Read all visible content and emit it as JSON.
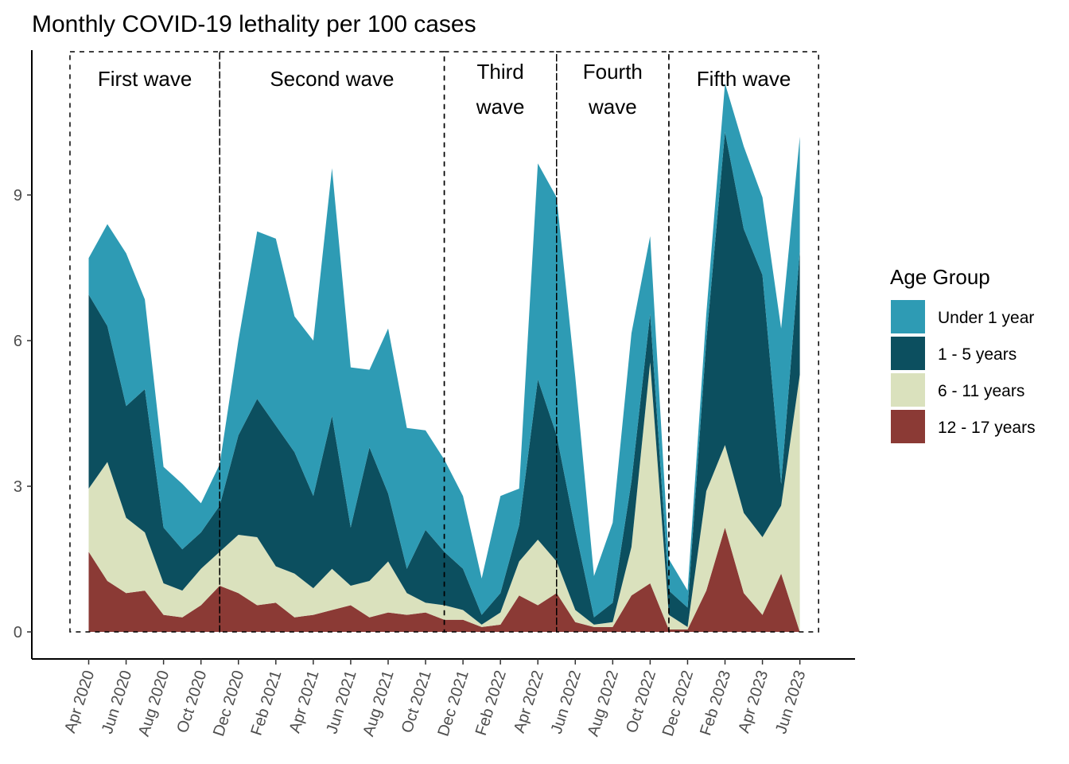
{
  "chart_data": {
    "type": "area",
    "stacked": true,
    "title": "Monthly COVID-19 lethality per 100 cases",
    "xlabel": "",
    "ylabel": "",
    "ylim": [
      -0.55,
      12.0
    ],
    "yticks": [
      0,
      3,
      6,
      9
    ],
    "grid": false,
    "x": [
      "2020-04",
      "2020-05",
      "2020-06",
      "2020-07",
      "2020-08",
      "2020-09",
      "2020-10",
      "2020-11",
      "2020-12",
      "2021-01",
      "2021-02",
      "2021-03",
      "2021-04",
      "2021-05",
      "2021-06",
      "2021-07",
      "2021-08",
      "2021-09",
      "2021-10",
      "2021-11",
      "2021-12",
      "2022-01",
      "2022-02",
      "2022-03",
      "2022-04",
      "2022-05",
      "2022-06",
      "2022-07",
      "2022-08",
      "2022-09",
      "2022-10",
      "2022-11",
      "2022-12",
      "2023-01",
      "2023-02",
      "2023-03",
      "2023-04",
      "2023-05",
      "2023-06"
    ],
    "xtick_labels": [
      {
        "month": "2020-04",
        "label": "Apr 2020"
      },
      {
        "month": "2020-06",
        "label": "Jun 2020"
      },
      {
        "month": "2020-08",
        "label": "Aug 2020"
      },
      {
        "month": "2020-10",
        "label": "Oct 2020"
      },
      {
        "month": "2020-12",
        "label": "Dec 2020"
      },
      {
        "month": "2021-02",
        "label": "Feb 2021"
      },
      {
        "month": "2021-04",
        "label": "Apr 2021"
      },
      {
        "month": "2021-06",
        "label": "Jun 2021"
      },
      {
        "month": "2021-08",
        "label": "Aug 2021"
      },
      {
        "month": "2021-10",
        "label": "Oct 2021"
      },
      {
        "month": "2021-12",
        "label": "Dec 2021"
      },
      {
        "month": "2022-02",
        "label": "Feb 2022"
      },
      {
        "month": "2022-04",
        "label": "Apr 2022"
      },
      {
        "month": "2022-06",
        "label": "Jun 2022"
      },
      {
        "month": "2022-08",
        "label": "Aug 2022"
      },
      {
        "month": "2022-10",
        "label": "Oct 2022"
      },
      {
        "month": "2022-12",
        "label": "Dec 2022"
      },
      {
        "month": "2023-02",
        "label": "Feb 2023"
      },
      {
        "month": "2023-04",
        "label": "Apr 2023"
      },
      {
        "month": "2023-06",
        "label": "Jun 2023"
      }
    ],
    "series": [
      {
        "name": "12 - 17 years",
        "color": "#8B3A35",
        "values": [
          1.65,
          1.05,
          0.8,
          0.85,
          0.35,
          0.3,
          0.55,
          0.95,
          0.8,
          0.55,
          0.6,
          0.3,
          0.35,
          0.45,
          0.55,
          0.3,
          0.4,
          0.35,
          0.4,
          0.25,
          0.25,
          0.1,
          0.15,
          0.75,
          0.55,
          0.8,
          0.2,
          0.1,
          0.1,
          0.75,
          1.0,
          0.05,
          0.05,
          0.85,
          2.15,
          0.8,
          0.35,
          1.2,
          0.0
        ]
      },
      {
        "name": "6 - 11 years",
        "color": "#DAE1BD",
        "values": [
          1.3,
          2.45,
          1.55,
          1.2,
          0.65,
          0.55,
          0.75,
          0.7,
          1.2,
          1.4,
          0.75,
          0.9,
          0.55,
          0.85,
          0.4,
          0.75,
          1.05,
          0.45,
          0.2,
          0.3,
          0.2,
          0.05,
          0.25,
          0.7,
          1.35,
          0.65,
          0.25,
          0.05,
          0.1,
          1.0,
          4.55,
          0.3,
          0.05,
          2.05,
          1.7,
          1.65,
          1.6,
          1.4,
          5.3
        ]
      },
      {
        "name": "1 - 5 years",
        "color": "#0C4F5F",
        "values": [
          4.0,
          2.8,
          2.3,
          2.95,
          1.15,
          0.85,
          0.75,
          0.95,
          2.05,
          2.85,
          2.9,
          2.5,
          1.9,
          3.15,
          1.2,
          2.75,
          1.4,
          0.5,
          1.5,
          1.1,
          0.85,
          0.2,
          0.4,
          0.75,
          3.3,
          2.6,
          1.65,
          0.15,
          0.4,
          1.35,
          1.0,
          0.5,
          0.4,
          3.1,
          6.45,
          5.85,
          5.4,
          0.45,
          2.55
        ]
      },
      {
        "name": "Under 1 year",
        "color": "#2E9BB4",
        "values": [
          0.75,
          2.1,
          3.15,
          1.85,
          1.25,
          1.35,
          0.6,
          0.85,
          1.95,
          3.45,
          3.85,
          2.8,
          3.2,
          5.1,
          3.3,
          1.6,
          3.4,
          2.9,
          2.05,
          1.9,
          1.5,
          0.75,
          2.0,
          0.75,
          4.45,
          4.9,
          3.15,
          0.85,
          1.65,
          3.05,
          1.6,
          0.65,
          0.35,
          0.55,
          1.0,
          1.7,
          1.6,
          3.2,
          2.35
        ]
      }
    ],
    "legend": {
      "title": "Age Group",
      "position": "right",
      "entries": [
        "Under 1 year",
        "1 - 5 years",
        "6 - 11 years",
        "12 - 17 years"
      ]
    },
    "annotations": {
      "waves": [
        {
          "lines": [
            "First wave"
          ],
          "start": "2020-03",
          "end": "2020-11"
        },
        {
          "lines": [
            "Second wave"
          ],
          "start": "2020-11",
          "end": "2021-11"
        },
        {
          "lines": [
            "Third",
            "wave"
          ],
          "start": "2021-11",
          "end": "2022-05"
        },
        {
          "lines": [
            "Fourth",
            "wave"
          ],
          "start": "2022-05",
          "end": "2022-11"
        },
        {
          "lines": [
            "Fifth wave"
          ],
          "start": "2022-11",
          "end": "2023-07"
        }
      ],
      "box_ymax": 11.95
    }
  }
}
